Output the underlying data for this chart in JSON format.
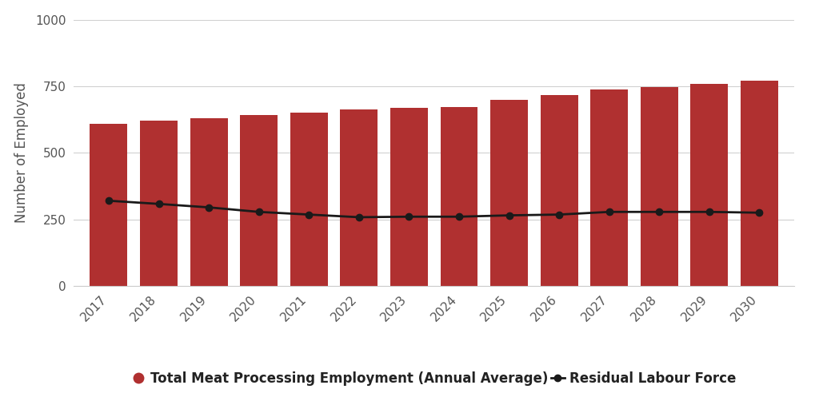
{
  "years": [
    2017,
    2018,
    2019,
    2020,
    2021,
    2022,
    2023,
    2024,
    2025,
    2026,
    2027,
    2028,
    2029,
    2030
  ],
  "bar_values": [
    610,
    620,
    630,
    643,
    650,
    663,
    668,
    673,
    700,
    718,
    738,
    748,
    758,
    770
  ],
  "line_values": [
    320,
    308,
    295,
    278,
    268,
    258,
    260,
    260,
    265,
    268,
    278,
    278,
    278,
    275
  ],
  "bar_color": "#b03030",
  "line_color": "#1a1a1a",
  "bar_label": "Total Meat Processing Employment (Annual Average)",
  "line_label": "Residual Labour Force",
  "ylabel": "Number of Employed",
  "ylim": [
    0,
    1000
  ],
  "yticks": [
    0,
    250,
    500,
    750,
    1000
  ],
  "background_color": "#ffffff",
  "grid_color": "#d0d0d0",
  "axis_fontsize": 12,
  "tick_fontsize": 11,
  "legend_fontsize": 12,
  "bar_width": 0.75
}
